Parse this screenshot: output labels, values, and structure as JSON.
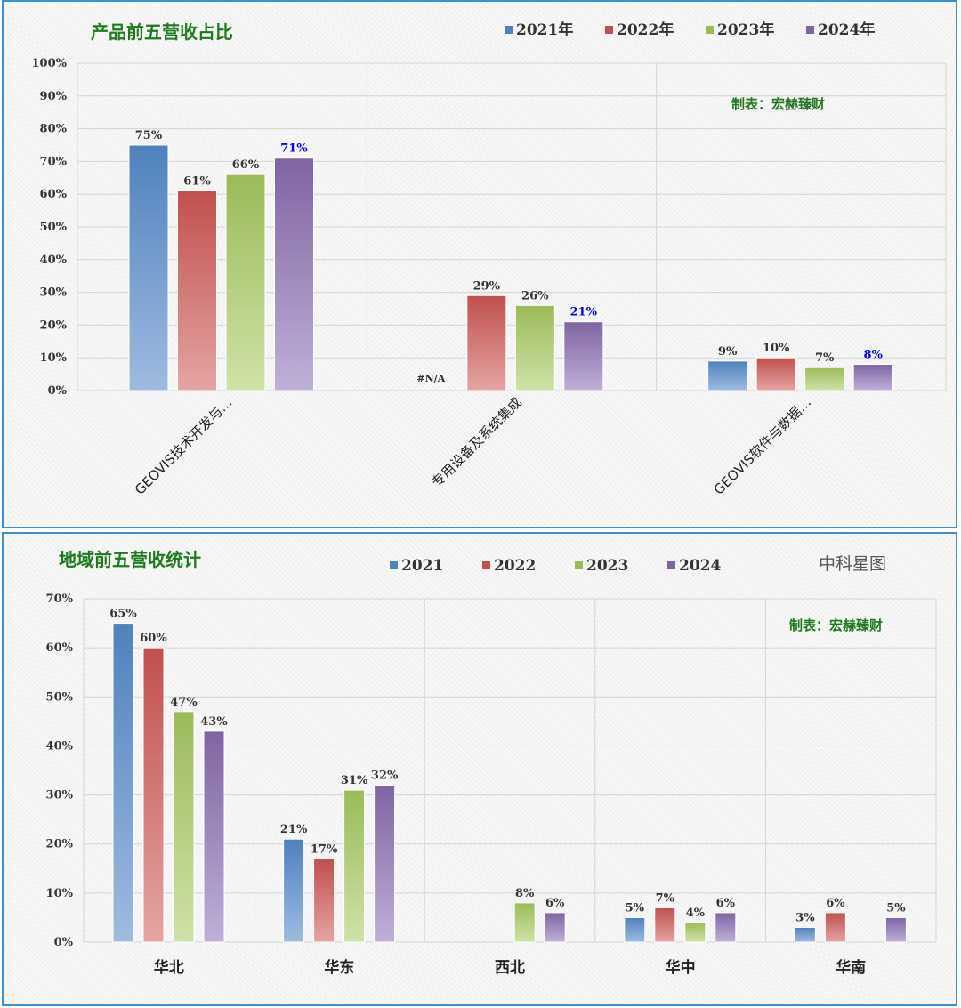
{
  "colors": {
    "series": [
      "#4f81bd",
      "#c0504d",
      "#9bbb59",
      "#8064a2"
    ],
    "series_light": [
      "#9fbbe0",
      "#e4a5a3",
      "#cfe2a8",
      "#bfb0d8"
    ],
    "frame": "#3d8fd1",
    "title": "#1f7a1f",
    "highlight_label": "#0000ee"
  },
  "panel1": {
    "title": "产品前五营收占比",
    "credit": "制表：宏赫臻财",
    "na_label": "#N/A"
  },
  "panel2": {
    "title": "地域前五营收统计",
    "company": "中科星图",
    "credit": "制表：宏赫臻财"
  },
  "chart_data": [
    {
      "type": "bar",
      "title": "产品前五营收占比",
      "categories": [
        "GEOVIS技术开发与…",
        "专用设备及系统集成",
        "GEOVIS软件与数据…"
      ],
      "series": [
        {
          "name": "2021年",
          "values": [
            0.75,
            null,
            0.09
          ],
          "labels": [
            "75%",
            "#N/A",
            "9%"
          ]
        },
        {
          "name": "2022年",
          "values": [
            0.61,
            0.29,
            0.1
          ],
          "labels": [
            "61%",
            "29%",
            "10%"
          ]
        },
        {
          "name": "2023年",
          "values": [
            0.66,
            0.26,
            0.07
          ],
          "labels": [
            "66%",
            "26%",
            "7%"
          ]
        },
        {
          "name": "2024年",
          "values": [
            0.71,
            0.21,
            0.08
          ],
          "labels": [
            "71%",
            "21%",
            "8%"
          ],
          "label_color": "#0000ee"
        }
      ],
      "yticks": [
        "0%",
        "10%",
        "20%",
        "30%",
        "40%",
        "50%",
        "60%",
        "70%",
        "80%",
        "90%",
        "100%"
      ],
      "ylim": [
        0,
        1
      ],
      "grid": true,
      "legend": "top-right"
    },
    {
      "type": "bar",
      "title": "地域前五营收统计",
      "categories": [
        "华北",
        "华东",
        "西北",
        "华中",
        "华南"
      ],
      "series": [
        {
          "name": "2021",
          "values": [
            0.65,
            0.21,
            null,
            0.05,
            0.03
          ],
          "labels": [
            "65%",
            "21%",
            "",
            "5%",
            "3%"
          ]
        },
        {
          "name": "2022",
          "values": [
            0.6,
            0.17,
            null,
            0.07,
            0.06
          ],
          "labels": [
            "60%",
            "17%",
            "",
            "7%",
            "6%"
          ]
        },
        {
          "name": "2023",
          "values": [
            0.47,
            0.31,
            0.08,
            0.04,
            null
          ],
          "labels": [
            "47%",
            "31%",
            "8%",
            "4%",
            ""
          ]
        },
        {
          "name": "2024",
          "values": [
            0.43,
            0.32,
            0.06,
            0.06,
            0.05
          ],
          "labels": [
            "43%",
            "32%",
            "6%",
            "6%",
            "5%"
          ]
        }
      ],
      "yticks": [
        "0%",
        "10%",
        "20%",
        "30%",
        "40%",
        "50%",
        "60%",
        "70%"
      ],
      "ylim": [
        0,
        0.7
      ],
      "grid": true,
      "legend": "top"
    }
  ]
}
